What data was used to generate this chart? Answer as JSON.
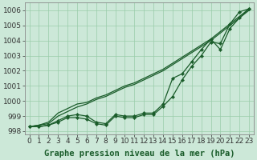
{
  "xlabel": "Graphe pression niveau de la mer (hPa)",
  "xlim_min": -0.5,
  "xlim_max": 23.5,
  "ylim_min": 997.8,
  "ylim_max": 1006.5,
  "yticks": [
    998,
    999,
    1000,
    1001,
    1002,
    1003,
    1004,
    1005,
    1006
  ],
  "xticks": [
    0,
    1,
    2,
    3,
    4,
    5,
    6,
    7,
    8,
    9,
    10,
    11,
    12,
    13,
    14,
    15,
    16,
    17,
    18,
    19,
    20,
    21,
    22,
    23
  ],
  "background_color": "#cce8d8",
  "grid_color": "#99ccaa",
  "line_color": "#1a5c2a",
  "line_steep1": [
    998.3,
    998.4,
    998.5,
    999.0,
    999.3,
    999.6,
    999.8,
    1000.1,
    1000.3,
    1000.6,
    1000.9,
    1001.1,
    1001.4,
    1001.7,
    1002.0,
    1002.4,
    1002.8,
    1003.2,
    1003.6,
    1004.0,
    1004.5,
    1005.0,
    1005.5,
    1006.0
  ],
  "line_steep2": [
    998.3,
    998.4,
    998.6,
    999.2,
    999.5,
    999.8,
    999.9,
    1000.2,
    1000.4,
    1000.7,
    1001.0,
    1001.2,
    1001.5,
    1001.8,
    1002.1,
    1002.5,
    1002.9,
    1003.3,
    1003.7,
    1004.1,
    1004.6,
    1005.1,
    1005.6,
    1006.1
  ],
  "line_flat_markers": [
    998.3,
    998.3,
    998.4,
    998.6,
    998.9,
    998.9,
    998.8,
    998.5,
    998.4,
    999.0,
    998.9,
    998.9,
    999.1,
    999.1,
    999.65,
    1000.3,
    1001.4,
    1002.3,
    1003.0,
    1003.9,
    1003.8,
    1005.1,
    1005.9,
    1006.1
  ],
  "line_flat_nomark": [
    998.3,
    998.3,
    998.4,
    998.7,
    999.0,
    999.1,
    999.0,
    998.6,
    998.5,
    999.1,
    999.0,
    999.0,
    999.2,
    999.2,
    999.8,
    1001.5,
    1001.8,
    1002.6,
    1003.4,
    1004.1,
    1003.4,
    1004.8,
    1005.5,
    1006.1
  ],
  "xlabel_fontsize": 7.5,
  "tick_fontsize": 6.5
}
